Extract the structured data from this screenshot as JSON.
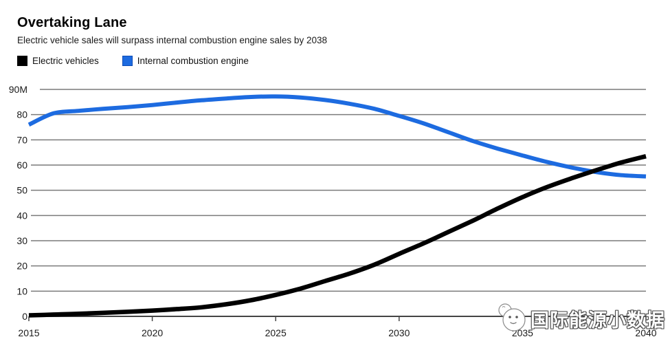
{
  "header": {
    "title": "Overtaking Lane",
    "subtitle": "Electric vehicle sales will surpass internal combustion engine sales by 2038"
  },
  "legend": {
    "items": [
      {
        "label": "Electric vehicles",
        "color": "#000000"
      },
      {
        "label": "Internal combustion engine",
        "color": "#1d6be0"
      }
    ],
    "position": "top-left"
  },
  "watermark": {
    "text": "国际能源小数据",
    "icon": "mascot-face-icon"
  },
  "chart_data": {
    "type": "line",
    "title": "Overtaking Lane",
    "subtitle": "Electric vehicle sales will surpass internal combustion engine sales by 2038",
    "xlabel": "",
    "ylabel": "",
    "x": [
      2015,
      2016,
      2017,
      2018,
      2019,
      2020,
      2021,
      2022,
      2023,
      2024,
      2025,
      2026,
      2027,
      2028,
      2029,
      2030,
      2031,
      2032,
      2033,
      2034,
      2035,
      2036,
      2037,
      2038,
      2039,
      2040
    ],
    "series": [
      {
        "name": "Internal combustion engine",
        "color": "#1d6be0",
        "width": 6,
        "values": [
          76,
          80.5,
          81.5,
          82.3,
          83,
          83.8,
          84.8,
          85.7,
          86.4,
          87,
          87.2,
          86.8,
          85.8,
          84.3,
          82.3,
          79.5,
          76.5,
          73,
          69.5,
          66.5,
          63.8,
          61.2,
          59,
          57.2,
          56,
          55.5
        ]
      },
      {
        "name": "Electric vehicles",
        "color": "#000000",
        "width": 6.5,
        "values": [
          0.4,
          0.7,
          1.0,
          1.4,
          1.8,
          2.3,
          2.9,
          3.6,
          4.8,
          6.4,
          8.5,
          11,
          14,
          17,
          20.5,
          24.8,
          29,
          33.5,
          38,
          42.8,
          47.3,
          51.3,
          54.8,
          58,
          61,
          63.5
        ]
      }
    ],
    "ylim": [
      0,
      90
    ],
    "yticks": [
      0,
      10,
      20,
      30,
      40,
      50,
      60,
      70,
      80,
      90
    ],
    "ytick_labels": [
      "0",
      "10",
      "20",
      "30",
      "40",
      "50",
      "60",
      "70",
      "80",
      "90M"
    ],
    "xticks": [
      2015,
      2020,
      2025,
      2030,
      2035,
      2040
    ],
    "xtick_labels": [
      "2015",
      "2020",
      "2025",
      "2030",
      "2035",
      "2040"
    ],
    "grid": "horizontal",
    "grid_color": "#7a7a7a",
    "axis_color": "#444444",
    "legend_position": "top-left"
  }
}
